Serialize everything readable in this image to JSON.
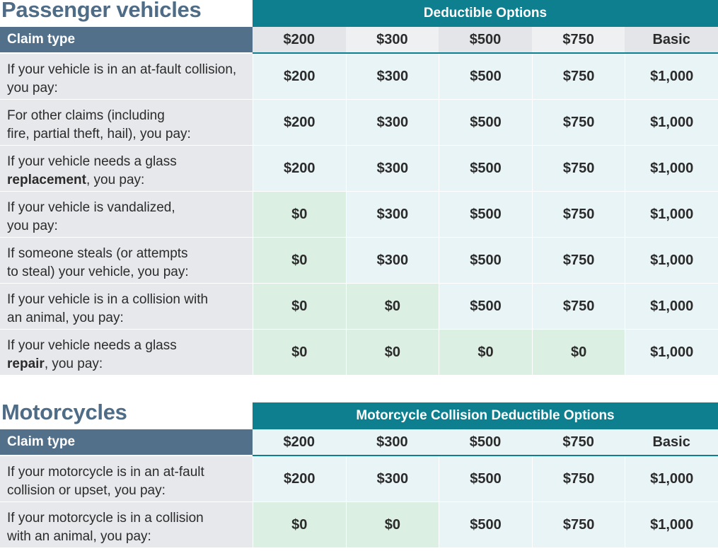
{
  "passenger": {
    "title": "Passenger vehicles",
    "band": "Deductible Options",
    "claim_header": "Claim type",
    "columns": [
      "$200",
      "$300",
      "$500",
      "$750",
      "Basic"
    ],
    "rows": [
      {
        "pre": "If your vehicle is in an at-fault collision,",
        "pre2": "you pay:",
        "bold": "",
        "post": "",
        "values": [
          "$200",
          "$300",
          "$500",
          "$750",
          "$1,000"
        ]
      },
      {
        "pre": "For other claims (including",
        "pre2": "fire, partial theft, hail), you pay:",
        "bold": "",
        "post": "",
        "values": [
          "$200",
          "$300",
          "$500",
          "$750",
          "$1,000"
        ]
      },
      {
        "pre": "If your vehicle needs a glass",
        "pre2": "",
        "bold": "replacement",
        "post": ", you pay:",
        "values": [
          "$200",
          "$300",
          "$500",
          "$750",
          "$1,000"
        ]
      },
      {
        "pre": "If your vehicle is vandalized,",
        "pre2": "you pay:",
        "bold": "",
        "post": "",
        "values": [
          "$0",
          "$300",
          "$500",
          "$750",
          "$1,000"
        ]
      },
      {
        "pre": "If someone steals (or attempts",
        "pre2": "to steal) your vehicle, you pay:",
        "bold": "",
        "post": "",
        "values": [
          "$0",
          "$300",
          "$500",
          "$750",
          "$1,000"
        ]
      },
      {
        "pre": "If your vehicle is in a collision with",
        "pre2": "an animal, you pay:",
        "bold": "",
        "post": "",
        "values": [
          "$0",
          "$0",
          "$500",
          "$750",
          "$1,000"
        ]
      },
      {
        "pre": "If your vehicle needs a glass",
        "pre2": "",
        "bold": "repair",
        "post": ", you pay:",
        "values": [
          "$0",
          "$0",
          "$0",
          "$0",
          "$1,000"
        ]
      }
    ]
  },
  "moto": {
    "title": "Motorcycles",
    "band": "Motorcycle Collision Deductible Options",
    "claim_header": "Claim type",
    "columns": [
      "$200",
      "$300",
      "$500",
      "$750",
      "Basic"
    ],
    "rows": [
      {
        "pre": "If your motorcycle is in an at-fault",
        "pre2": "collision or upset, you pay:",
        "bold": "",
        "post": "",
        "values": [
          "$200",
          "$300",
          "$500",
          "$750",
          "$1,000"
        ]
      },
      {
        "pre": "If your motorcycle is in a collision",
        "pre2": "with an animal, you pay:",
        "bold": "",
        "post": "",
        "values": [
          "$0",
          "$0",
          "$500",
          "$750",
          "$1,000"
        ]
      }
    ]
  }
}
